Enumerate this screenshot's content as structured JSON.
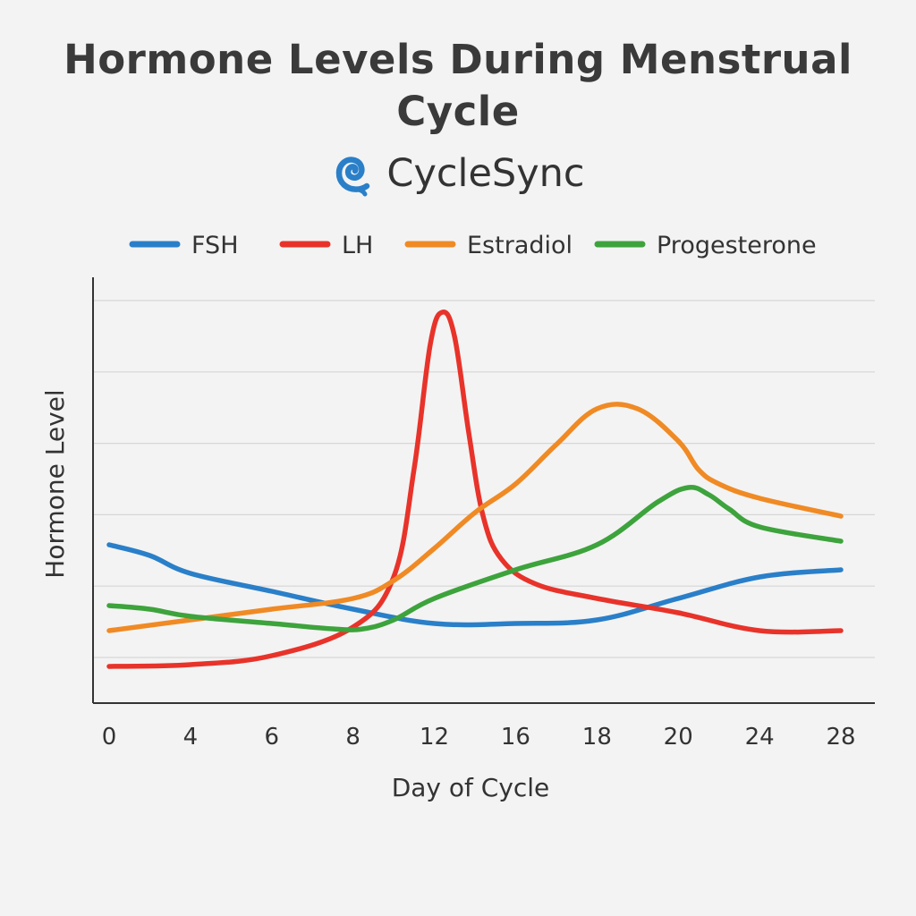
{
  "chart_data": {
    "type": "line",
    "title": "Hormone Levels During Menstrual Cycle",
    "brand": "CycleSync",
    "xlabel": "Day of Cycle",
    "ylabel": "Hormone Level",
    "x_tick_labels": [
      "0",
      "4",
      "6",
      "8",
      "12",
      "16",
      "18",
      "20",
      "24",
      "28"
    ],
    "y_gridlines": 6,
    "ylim": [
      0,
      100
    ],
    "grid": true,
    "legend_placement": "top",
    "series": [
      {
        "name": "FSH",
        "color": "#2a7fc9",
        "points": [
          [
            0,
            34
          ],
          [
            2,
            31
          ],
          [
            4,
            26
          ],
          [
            6,
            21
          ],
          [
            8,
            16
          ],
          [
            12,
            12
          ],
          [
            16,
            12
          ],
          [
            18,
            13
          ],
          [
            20,
            19
          ],
          [
            24,
            25
          ],
          [
            28,
            27
          ]
        ]
      },
      {
        "name": "LH",
        "color": "#e8332a",
        "points": [
          [
            0,
            0
          ],
          [
            4,
            0.5
          ],
          [
            6,
            3
          ],
          [
            8,
            11
          ],
          [
            10,
            25
          ],
          [
            11,
            55
          ],
          [
            11.8,
            90
          ],
          [
            12.4,
            99
          ],
          [
            13,
            92
          ],
          [
            13.7,
            65
          ],
          [
            14.4,
            42
          ],
          [
            15.3,
            30
          ],
          [
            16.5,
            23
          ],
          [
            18,
            19
          ],
          [
            20,
            15
          ],
          [
            24,
            10
          ],
          [
            28,
            10
          ]
        ]
      },
      {
        "name": "Estradiol",
        "color": "#f08a24",
        "points": [
          [
            0,
            10
          ],
          [
            4,
            13
          ],
          [
            6,
            16
          ],
          [
            8,
            19
          ],
          [
            10,
            24
          ],
          [
            12,
            33
          ],
          [
            14,
            43
          ],
          [
            16,
            51
          ],
          [
            17,
            62
          ],
          [
            18,
            72
          ],
          [
            19,
            72
          ],
          [
            20,
            63
          ],
          [
            21,
            55
          ],
          [
            22,
            51
          ],
          [
            24,
            47
          ],
          [
            28,
            42
          ]
        ]
      },
      {
        "name": "Progesterone",
        "color": "#3da33c",
        "points": [
          [
            0,
            17
          ],
          [
            2,
            16
          ],
          [
            4,
            14
          ],
          [
            6,
            12
          ],
          [
            7.5,
            10.5
          ],
          [
            8.5,
            10.5
          ],
          [
            10,
            13
          ],
          [
            12,
            19
          ],
          [
            16,
            27
          ],
          [
            18,
            34
          ],
          [
            19.5,
            46
          ],
          [
            20.5,
            50
          ],
          [
            21.5,
            48
          ],
          [
            22.5,
            44
          ],
          [
            24,
            39
          ],
          [
            28,
            35
          ]
        ]
      }
    ]
  }
}
